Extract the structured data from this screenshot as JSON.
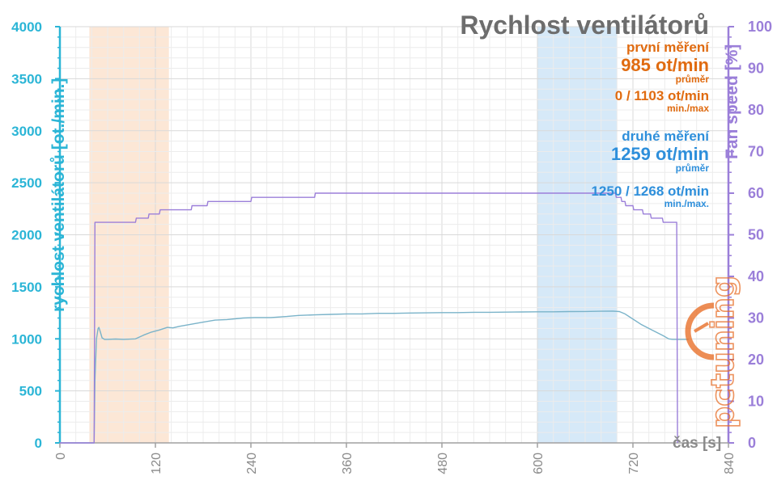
{
  "chart_data": {
    "type": "line",
    "title": "Rychlost ventilátorů",
    "xlabel": "čas [s]",
    "ylabel_left": "rychlost ventilátorů [ot./min.]",
    "ylabel_right": "Fan speed [%]",
    "xlim": [
      0,
      840
    ],
    "ylim_left": [
      0,
      4000
    ],
    "ylim_right": [
      0,
      100
    ],
    "x_ticks": [
      0,
      120,
      240,
      360,
      480,
      600,
      720,
      840
    ],
    "y_ticks_left": [
      0,
      500,
      1000,
      1500,
      2000,
      2500,
      3000,
      3500,
      4000
    ],
    "y_ticks_right": [
      0,
      10,
      20,
      30,
      40,
      50,
      60,
      70,
      80,
      90,
      100
    ],
    "grid": true,
    "colors": {
      "rpm_line": "#7ab3c9",
      "percent_line": "#9b7fd9",
      "left_axis": "#2bb5d6",
      "right_axis": "#9b7fd9",
      "region_first": "#fbe3cf",
      "region_second": "#cfe5f7",
      "first_text": "#e06b10",
      "second_text": "#2e8fdb"
    },
    "regions": [
      {
        "x_start": 37,
        "x_end": 137,
        "color": "#fbe3cf"
      },
      {
        "x_start": 600,
        "x_end": 700,
        "color": "#cfe5f7"
      }
    ],
    "series": [
      {
        "axis": "left",
        "color": "#7ab3c9",
        "points": [
          [
            0,
            0
          ],
          [
            43,
            0
          ],
          [
            44,
            600
          ],
          [
            46,
            1000
          ],
          [
            48,
            1100
          ],
          [
            49,
            1110
          ],
          [
            51,
            1060
          ],
          [
            53,
            1010
          ],
          [
            56,
            995
          ],
          [
            60,
            995
          ],
          [
            70,
            998
          ],
          [
            80,
            995
          ],
          [
            95,
            1000
          ],
          [
            105,
            1035
          ],
          [
            115,
            1065
          ],
          [
            125,
            1085
          ],
          [
            135,
            1110
          ],
          [
            142,
            1105
          ],
          [
            150,
            1120
          ],
          [
            165,
            1140
          ],
          [
            180,
            1160
          ],
          [
            195,
            1180
          ],
          [
            210,
            1185
          ],
          [
            230,
            1200
          ],
          [
            245,
            1205
          ],
          [
            265,
            1205
          ],
          [
            285,
            1215
          ],
          [
            300,
            1225
          ],
          [
            320,
            1230
          ],
          [
            340,
            1235
          ],
          [
            360,
            1240
          ],
          [
            380,
            1240
          ],
          [
            400,
            1245
          ],
          [
            420,
            1245
          ],
          [
            440,
            1248
          ],
          [
            460,
            1250
          ],
          [
            480,
            1252
          ],
          [
            500,
            1252
          ],
          [
            520,
            1255
          ],
          [
            540,
            1255
          ],
          [
            560,
            1257
          ],
          [
            580,
            1258
          ],
          [
            600,
            1260
          ],
          [
            620,
            1260
          ],
          [
            640,
            1262
          ],
          [
            660,
            1263
          ],
          [
            680,
            1265
          ],
          [
            695,
            1266
          ],
          [
            703,
            1262
          ],
          [
            710,
            1240
          ],
          [
            718,
            1200
          ],
          [
            730,
            1140
          ],
          [
            745,
            1080
          ],
          [
            758,
            1030
          ],
          [
            765,
            1000
          ],
          [
            770,
            995
          ],
          [
            785,
            995
          ],
          [
            790,
            995
          ]
        ]
      },
      {
        "axis": "right",
        "color": "#9b7fd9",
        "points": [
          [
            0,
            0
          ],
          [
            43,
            0
          ],
          [
            44,
            53
          ],
          [
            95,
            53
          ],
          [
            96,
            54
          ],
          [
            111,
            54
          ],
          [
            112,
            55
          ],
          [
            125,
            55
          ],
          [
            126,
            56
          ],
          [
            165,
            56
          ],
          [
            166,
            57
          ],
          [
            185,
            57
          ],
          [
            186,
            58
          ],
          [
            240,
            58
          ],
          [
            241,
            59
          ],
          [
            320,
            59
          ],
          [
            321,
            60
          ],
          [
            698,
            60
          ],
          [
            699,
            59
          ],
          [
            705,
            59
          ],
          [
            706,
            58
          ],
          [
            710,
            58
          ],
          [
            711,
            57
          ],
          [
            720,
            57
          ],
          [
            721,
            56
          ],
          [
            732,
            56
          ],
          [
            733,
            55
          ],
          [
            742,
            55
          ],
          [
            743,
            54
          ],
          [
            757,
            54
          ],
          [
            758,
            53
          ],
          [
            775,
            53
          ],
          [
            776,
            0
          ]
        ]
      }
    ],
    "annotations": {
      "first": {
        "heading": "první měření",
        "avg_value": "985 ot/min",
        "avg_label": "průměr",
        "minmax_value": "0 / 1103 ot/min",
        "minmax_label": "min./max"
      },
      "second": {
        "heading": "druhé měření",
        "avg_value": "1259 ot/min",
        "avg_label": "průměr",
        "minmax_value": "1250 / 1268 ot/min",
        "minmax_label": "min./max."
      }
    }
  },
  "logo": {
    "text": "pctuning"
  }
}
